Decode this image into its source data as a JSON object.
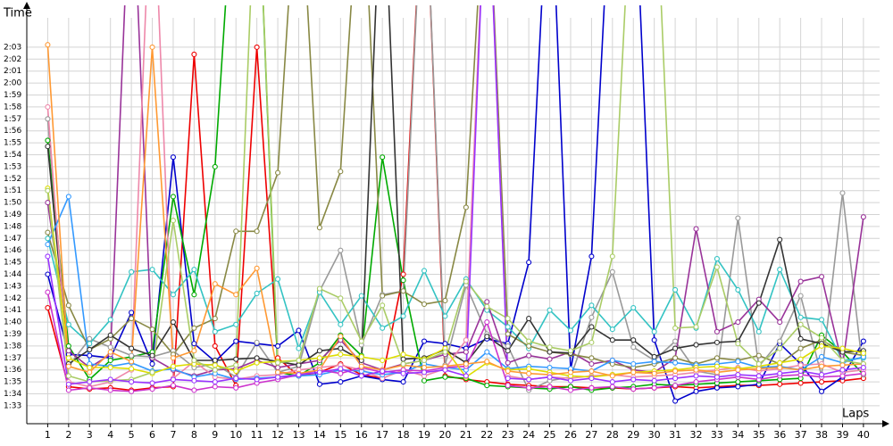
{
  "chart_data": {
    "type": "line",
    "y_label": "Time",
    "x_label": "Laps",
    "x": [
      1,
      2,
      3,
      4,
      5,
      6,
      7,
      8,
      9,
      10,
      11,
      12,
      13,
      14,
      15,
      16,
      17,
      18,
      19,
      20,
      21,
      22,
      23,
      24,
      25,
      26,
      27,
      28,
      29,
      30,
      31,
      32,
      33,
      34,
      35,
      36,
      37,
      38,
      39,
      40
    ],
    "xlim": [
      0,
      41.2
    ],
    "xticks": [
      1,
      2,
      3,
      4,
      5,
      6,
      7,
      8,
      9,
      10,
      11,
      12,
      13,
      14,
      15,
      16,
      17,
      18,
      19,
      20,
      21,
      22,
      23,
      24,
      25,
      26,
      27,
      28,
      29,
      30,
      31,
      32,
      33,
      34,
      35,
      36,
      37,
      38,
      39,
      40
    ],
    "ylim": [
      91.5,
      126.5
    ],
    "yticks": [
      {
        "value": 93,
        "label": "1:33"
      },
      {
        "value": 94,
        "label": "1:34"
      },
      {
        "value": 95,
        "label": "1:35"
      },
      {
        "value": 96,
        "label": "1:36"
      },
      {
        "value": 97,
        "label": "1:37"
      },
      {
        "value": 98,
        "label": "1:38"
      },
      {
        "value": 99,
        "label": "1:39"
      },
      {
        "value": 100,
        "label": "1:40"
      },
      {
        "value": 101,
        "label": "1:41"
      },
      {
        "value": 102,
        "label": "1:42"
      },
      {
        "value": 103,
        "label": "1:43"
      },
      {
        "value": 104,
        "label": "1:44"
      },
      {
        "value": 105,
        "label": "1:45"
      },
      {
        "value": 106,
        "label": "1:46"
      },
      {
        "value": 107,
        "label": "1:47"
      },
      {
        "value": 108,
        "label": "1:48"
      },
      {
        "value": 109,
        "label": "1:49"
      },
      {
        "value": 110,
        "label": "1:50"
      },
      {
        "value": 111,
        "label": "1:51"
      },
      {
        "value": 112,
        "label": "1:52"
      },
      {
        "value": 113,
        "label": "1:53"
      },
      {
        "value": 114,
        "label": "1:54"
      },
      {
        "value": 115,
        "label": "1:55"
      },
      {
        "value": 116,
        "label": "1:56"
      },
      {
        "value": 117,
        "label": "1:57"
      },
      {
        "value": 118,
        "label": "1:58"
      },
      {
        "value": 119,
        "label": "1:59"
      },
      {
        "value": 120,
        "label": "2:00"
      },
      {
        "value": 121,
        "label": "2:01"
      },
      {
        "value": 122,
        "label": "2:02"
      },
      {
        "value": 123,
        "label": "2:03"
      }
    ],
    "grid": true,
    "series": [
      {
        "color": "#ee0000",
        "values": [
          101.2,
          94.6,
          94.4,
          94.5,
          94.3,
          94.5,
          94.6,
          122.4,
          98,
          94.7,
          123,
          97,
          95.5,
          95.8,
          96.5,
          95.6,
          95.3,
          104,
          140,
          95.5,
          95.2,
          95,
          94.8,
          94.7,
          94.6,
          94.6,
          94.5,
          94.5,
          94.4,
          94.5,
          94.6,
          94.5,
          94.6,
          94.7,
          94.7,
          94.8,
          94.9,
          95,
          95.1,
          95.3
        ]
      },
      {
        "color": "#0000cc",
        "values": [
          104,
          97.3,
          97.2,
          97,
          100.8,
          96.5,
          113.8,
          98.2,
          96.7,
          98.4,
          98.2,
          98,
          99.3,
          94.8,
          95,
          95.5,
          95.2,
          95,
          98.4,
          98.2,
          97.8,
          98.6,
          98.2,
          105,
          140,
          96,
          105.5,
          140,
          140,
          98.5,
          93.4,
          94.2,
          94.5,
          94.6,
          94.8,
          98.2,
          96.5,
          94.2,
          95.4,
          98.4
        ]
      },
      {
        "color": "#00aa00",
        "values": [
          115.2,
          98,
          95.2,
          96.8,
          97.1,
          97.5,
          110.5,
          102.3,
          113,
          140,
          140,
          95.8,
          95.5,
          96.6,
          98.9,
          97.2,
          113.8,
          103.5,
          95.1,
          95.4,
          95.3,
          94.7,
          94.6,
          94.5,
          94.4,
          94.6,
          94.3,
          94.5,
          94.6,
          94.8,
          94.7,
          94.8,
          94.9,
          95,
          95.1,
          95.2,
          95.3,
          98.9,
          97.5,
          95.6
        ]
      },
      {
        "color": "#999999",
        "values": [
          117,
          96.3,
          98.6,
          97.9,
          97.2,
          97.1,
          97.6,
          96.2,
          96.5,
          95.4,
          98.3,
          95.8,
          96.3,
          102.6,
          106,
          98.1,
          102.3,
          102.6,
          140,
          96.4,
          103.1,
          99,
          98,
          94.3,
          95.1,
          95.4,
          100.4,
          104.2,
          97.9,
          96.8,
          98.4,
          95.9,
          95.6,
          108.7,
          96.3,
          98.4,
          102.2,
          95.5,
          110.8,
          95.6
        ]
      },
      {
        "color": "#33c3c3",
        "values": [
          107,
          99.8,
          98.2,
          100.2,
          104.2,
          104.4,
          102.3,
          104.4,
          99.2,
          99.8,
          102.4,
          103.6,
          97.8,
          102.5,
          99.8,
          102.2,
          99.5,
          100.5,
          104.3,
          100.5,
          103.6,
          101,
          99.6,
          97.8,
          101,
          99.3,
          101.4,
          99.4,
          101.2,
          99.2,
          102.7,
          99.5,
          105.3,
          102.7,
          99.2,
          104.4,
          100.4,
          100.2,
          96.8,
          97
        ]
      },
      {
        "color": "#993399",
        "values": [
          110,
          97.6,
          96.2,
          97.3,
          140,
          97,
          96,
          95.5,
          96,
          96.1,
          96.8,
          96.2,
          96.5,
          96.8,
          98.5,
          96.6,
          96,
          96.5,
          96.8,
          97.3,
          97.5,
          101.7,
          96.6,
          97.2,
          96.9,
          97.5,
          96.5,
          96.8,
          96,
          95.8,
          97,
          107.8,
          99.2,
          100,
          101.9,
          100,
          103.4,
          103.8,
          96.4,
          108.8
        ]
      },
      {
        "color": "#888844",
        "values": [
          107.5,
          101.4,
          97.7,
          98.6,
          100.3,
          99.4,
          97.3,
          99.5,
          100.3,
          107.6,
          107.6,
          112.5,
          140,
          107.9,
          112.6,
          140,
          102.2,
          102.6,
          101.5,
          101.8,
          109.6,
          140,
          99,
          98,
          97.5,
          97.3,
          97,
          96.5,
          96.2,
          96.5,
          97,
          96.5,
          97,
          96.8,
          97.2,
          96.5,
          97.8,
          98.5,
          97.5,
          97.2
        ]
      },
      {
        "color": "#333333",
        "values": [
          114.7,
          96.5,
          97.7,
          98.9,
          97.8,
          97.2,
          100,
          96.8,
          96.8,
          96.9,
          97,
          96.7,
          96.4,
          97.6,
          97.8,
          96.8,
          140,
          96.9,
          97,
          97.7,
          96.6,
          98.8,
          97.6,
          100.3,
          97.5,
          97.4,
          99.6,
          98.5,
          98.5,
          97.1,
          97.8,
          98.1,
          98.3,
          98.4,
          101.6,
          106.9,
          98.6,
          98.2,
          97.5,
          97.6
        ]
      },
      {
        "color": "#ee88aa",
        "values": [
          118,
          95,
          94.6,
          95,
          96,
          140,
          95.3,
          96.7,
          95.4,
          95.2,
          95.5,
          95.6,
          96,
          96.2,
          96.4,
          96,
          95.3,
          96,
          95.5,
          96.1,
          98.5,
          140,
          95.5,
          95.2,
          95.4,
          95.3,
          95.5,
          95.6,
          95.4,
          95.5,
          95.6,
          95.8,
          96,
          96.2,
          95.9,
          96.1,
          96.4,
          96.5,
          95.8,
          96
        ]
      },
      {
        "color": "#3399ff",
        "values": [
          106.5,
          110.5,
          96.5,
          96.3,
          96.6,
          95.9,
          96.1,
          95.4,
          95.7,
          95.2,
          95.3,
          95.4,
          95.5,
          95.6,
          96,
          95.9,
          95.6,
          95.8,
          96.5,
          96.2,
          96,
          97.5,
          96.1,
          96.3,
          96.2,
          96.1,
          95.9,
          96.8,
          96.5,
          96.7,
          96.6,
          96.4,
          96.5,
          96.7,
          96.2,
          96.3,
          96,
          97.1,
          96.6,
          97.1
        ]
      },
      {
        "color": "#cc33cc",
        "values": [
          102.5,
          94.3,
          94.5,
          94.3,
          94.2,
          94.4,
          94.7,
          94.3,
          94.6,
          94.5,
          94.9,
          95.2,
          95.6,
          96,
          95.7,
          96.2,
          95.8,
          96,
          95.9,
          96.2,
          96.3,
          100,
          94.7,
          94.5,
          94.6,
          94.3,
          94.5,
          94.6,
          94.4,
          94.5,
          94.7,
          95,
          95.2,
          95.4,
          95.2,
          95.5,
          95.6,
          95.4,
          95.5,
          95.7
        ]
      },
      {
        "color": "#dddd00",
        "values": [
          111.2,
          97,
          96.2,
          96.2,
          96.1,
          95.7,
          96.3,
          96.5,
          96.4,
          95.9,
          96.6,
          96.7,
          96.8,
          97,
          97.3,
          97.1,
          96.8,
          97.3,
          96.9,
          97.8,
          95.4,
          96.6,
          96,
          96.1,
          95.8,
          95.5,
          95.4,
          95.6,
          95.8,
          95.9,
          96,
          96.2,
          96.3,
          96.1,
          96.3,
          96.6,
          96.9,
          98,
          97.8,
          97.4
        ]
      },
      {
        "color": "#ff9933",
        "values": [
          123.2,
          96.3,
          95.8,
          97.5,
          96.7,
          123,
          97,
          97.6,
          103.2,
          102.3,
          104.5,
          95.8,
          95.7,
          96,
          98.8,
          96.3,
          96,
          96.4,
          96.2,
          96.3,
          96.5,
          96.7,
          95.9,
          95.7,
          95.6,
          95.8,
          95.9,
          95.5,
          95.8,
          95.7,
          95.9,
          96,
          95.8,
          96,
          96.1,
          96.2,
          96,
          96.3,
          96.4,
          96.5
        ]
      },
      {
        "color": "#aacc66",
        "values": [
          111,
          95.5,
          95,
          95.1,
          95.2,
          95.8,
          108.5,
          96.8,
          96,
          96.4,
          140,
          96.6,
          96.8,
          102.8,
          102,
          98.4,
          101.4,
          96.5,
          96.8,
          97.5,
          103.4,
          101.3,
          100.3,
          98.4,
          97.9,
          97.6,
          98.3,
          105.5,
          140,
          140,
          99.5,
          99.6,
          104.6,
          98.2,
          96.5,
          97.8,
          99.8,
          98.7,
          96.8,
          96.5
        ]
      },
      {
        "color": "#9933ff",
        "values": [
          105.5,
          94.8,
          95,
          95.2,
          95,
          94.9,
          95.2,
          95.1,
          95,
          95.3,
          95.2,
          95.4,
          95.6,
          95.8,
          96.1,
          95.5,
          95.9,
          95.7,
          95.8,
          96,
          95.5,
          140,
          95.3,
          95.2,
          95.4,
          95.1,
          95.3,
          95,
          95.2,
          95.1,
          95.3,
          95.5,
          95.4,
          95.6,
          95.5,
          95.7,
          95.9,
          95.6,
          96,
          96.2
        ]
      }
    ]
  }
}
